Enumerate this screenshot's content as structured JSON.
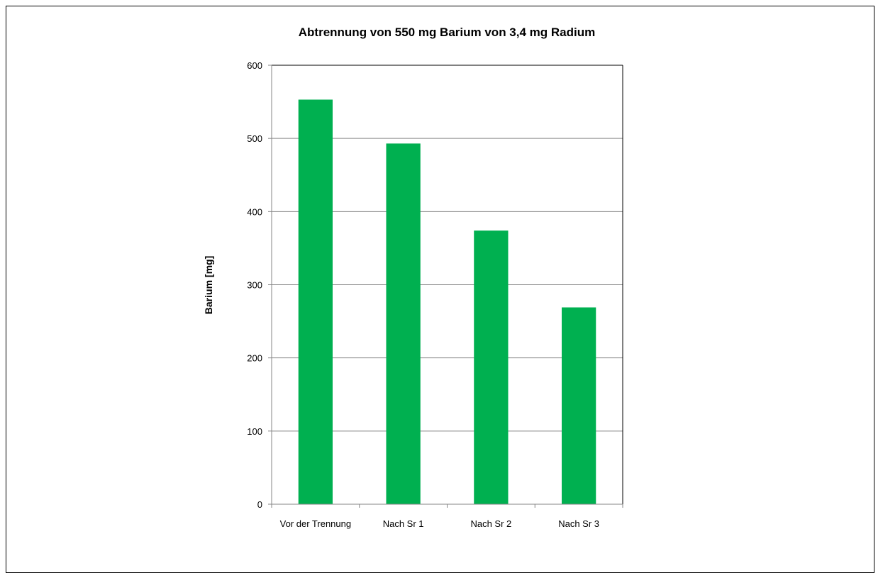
{
  "chart_data": {
    "type": "bar",
    "title": "Abtrennung von 550 mg Barium von 3,4 mg Radium",
    "xlabel": "",
    "ylabel": "Barium [mg]",
    "categories": [
      "Vor der Trennung",
      "Nach Sr 1",
      "Nach Sr 2",
      "Nach Sr 3"
    ],
    "values": [
      553,
      493,
      374,
      269
    ],
    "ylim": [
      0,
      600
    ],
    "yticks": [
      0,
      100,
      200,
      300,
      400,
      500,
      600
    ],
    "grid": true,
    "legend": "none",
    "colors": {
      "bar": "#00B050",
      "grid": "#868686",
      "axis": "#000000"
    }
  }
}
